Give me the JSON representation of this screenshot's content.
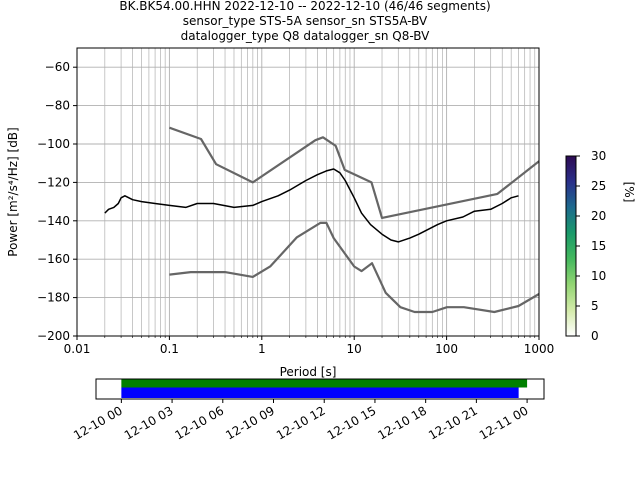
{
  "title": {
    "line1": "BK.BK54.00.HHN   2022-12-10 -- 2022-12-10  (46/46 segments)",
    "line2": "sensor_type STS-5A sensor_sn STS5A-BV",
    "line3": "datalogger_type Q8 datalogger_sn Q8-BV"
  },
  "chart_data": [
    {
      "type": "heatmap",
      "xlabel": "Period [s]",
      "ylabel": "Power [m²/s⁴/Hz] [dB]",
      "xscale": "log",
      "xlim": [
        0.01,
        1000
      ],
      "ylim": [
        -200,
        -50
      ],
      "grid": true,
      "x_ticks": [
        0.01,
        0.1,
        1,
        10,
        100,
        1000
      ],
      "x_tick_labels": [
        "0.01",
        "0.1",
        "1",
        "10",
        "100",
        "1000"
      ],
      "y_ticks": [
        -200,
        -180,
        -160,
        -140,
        -120,
        -100,
        -80,
        -60
      ],
      "y_tick_labels": [
        "−200",
        "−180",
        "−160",
        "−140",
        "−120",
        "−100",
        "−80",
        "−60"
      ],
      "colorbar": {
        "label": "[%]",
        "range": [
          0,
          30
        ],
        "ticks": [
          0,
          5,
          10,
          15,
          20,
          25,
          30
        ],
        "tick_labels": [
          "0",
          "5",
          "10",
          "15",
          "20",
          "25",
          "30"
        ],
        "colors": [
          "#ffffff",
          "#d4ebaa",
          "#93d573",
          "#44b85e",
          "#1a9a6a",
          "#1d6a8e",
          "#2a2f8a",
          "#2d0a52"
        ]
      },
      "series": [
        {
          "role": "mode",
          "color": "#000000",
          "x": [
            0.02,
            0.022,
            0.025,
            0.028,
            0.03,
            0.033,
            0.04,
            0.05,
            0.07,
            0.1,
            0.15,
            0.2,
            0.3,
            0.5,
            0.8,
            1.0,
            1.5,
            2.0,
            3.0,
            4.0,
            5.0,
            6.0,
            7.0,
            8.0,
            10.0,
            12.0,
            15.0,
            20.0,
            25.0,
            30.0,
            40.0,
            50.0,
            60.0,
            80.0,
            100.0,
            150.0,
            200.0,
            300.0,
            400.0,
            500.0,
            600.0
          ],
          "y": [
            -136,
            -134,
            -133,
            -131,
            -128,
            -127,
            -129,
            -130,
            -131,
            -132,
            -133,
            -131,
            -131,
            -133,
            -132,
            -130,
            -127,
            -124,
            -119,
            -116,
            -114,
            -113,
            -115,
            -119,
            -128,
            -136,
            -142,
            -147,
            -150,
            -151,
            -149,
            -147,
            -145,
            -142,
            -140,
            -138,
            -135,
            -134,
            -131,
            -128,
            -127
          ]
        },
        {
          "role": "noise-model-high",
          "color": "#666666",
          "x": [
            0.1,
            0.22,
            0.32,
            0.8,
            3.8,
            4.6,
            6.3,
            7.9,
            15.4,
            20.0,
            354.8,
            1000.0
          ],
          "y": [
            -91.5,
            -97.4,
            -110.5,
            -120.0,
            -98.0,
            -96.5,
            -101.0,
            -113.5,
            -120.0,
            -138.5,
            -126.0,
            -109.0
          ]
        },
        {
          "role": "noise-model-low",
          "color": "#666666",
          "x": [
            0.1,
            0.17,
            0.4,
            0.8,
            1.24,
            2.4,
            4.3,
            5.0,
            6.0,
            10.0,
            12.0,
            15.6,
            21.9,
            31.6,
            45.0,
            70.0,
            101.0,
            154.0,
            328.0,
            600.0,
            1000.0
          ],
          "y": [
            -168.0,
            -166.7,
            -166.7,
            -169.2,
            -163.7,
            -148.6,
            -141.1,
            -141.1,
            -149.0,
            -163.8,
            -166.2,
            -162.1,
            -177.5,
            -185.0,
            -187.5,
            -187.5,
            -185.0,
            -185.0,
            -187.5,
            -184.4,
            -178.1
          ]
        }
      ],
      "density_band": {
        "x": [
          0.02,
          0.022,
          0.025,
          0.028,
          0.03,
          0.033,
          0.04,
          0.05,
          0.07,
          0.1,
          0.15,
          0.2,
          0.3,
          0.5,
          0.8,
          1.0,
          1.5,
          2.0,
          3.0,
          4.0,
          5.0,
          6.0,
          7.0,
          8.0,
          10.0,
          12.0,
          15.0,
          20.0,
          25.0,
          30.0,
          40.0,
          50.0,
          60.0,
          80.0,
          100.0,
          150.0,
          200.0,
          300.0,
          400.0,
          500.0,
          600.0
        ],
        "low": [
          -140,
          -139,
          -138,
          -137,
          -136,
          -136,
          -136,
          -136,
          -136,
          -136,
          -136,
          -135,
          -135,
          -136,
          -135,
          -134,
          -131,
          -129,
          -125,
          -121,
          -119,
          -118,
          -121,
          -125,
          -133,
          -141,
          -147,
          -153,
          -158,
          -160,
          -157,
          -152,
          -149,
          -146,
          -143,
          -141,
          -138,
          -136,
          -134,
          -131,
          -130
        ],
        "high": [
          -132,
          -131,
          -130,
          -129,
          -124,
          -123,
          -124,
          -126,
          -127,
          -128,
          -129,
          -127,
          -128,
          -129,
          -129,
          -126,
          -123,
          -120,
          -114,
          -111,
          -108,
          -108,
          -110,
          -113,
          -122,
          -130,
          -136,
          -141,
          -143,
          -144,
          -142,
          -140,
          -138,
          -136,
          -134,
          -132,
          -131,
          -130,
          -128,
          -126,
          -125
        ]
      }
    },
    {
      "type": "bar",
      "xlim_hours": [
        -1.5,
        25.0
      ],
      "x_ticks_hours": [
        0,
        3,
        6,
        9,
        12,
        15,
        18,
        21,
        24
      ],
      "x_tick_labels": [
        "12-10 00",
        "12-10 03",
        "12-10 06",
        "12-10 09",
        "12-10 12",
        "12-10 15",
        "12-10 18",
        "12-10 21",
        "12-11 00"
      ],
      "series": [
        {
          "role": "data-availability",
          "color": "#008000",
          "start_hour": 0.0,
          "end_hour": 24.0
        },
        {
          "role": "psd-segments",
          "color": "#0000ff",
          "start_hour": 0.0,
          "end_hour": 23.5
        }
      ]
    }
  ]
}
